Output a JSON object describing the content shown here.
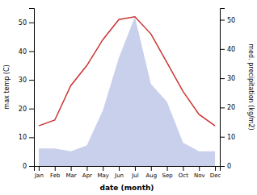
{
  "chart_data": {
    "type": "line",
    "xlabel": "date (month)",
    "ylabel": "max temp (C)",
    "y2label": "med. precipitation (kg/m2)",
    "categories": [
      "Jan",
      "Feb",
      "Mar",
      "Apr",
      "May",
      "Jun",
      "Jul",
      "Aug",
      "Sep",
      "Oct",
      "Nov",
      "Dec"
    ],
    "series": [
      {
        "type": "line",
        "color": "#cc3333",
        "values": [
          14,
          16,
          28,
          35,
          44,
          51,
          52,
          46,
          36,
          26,
          18,
          14
        ]
      },
      {
        "type": "area",
        "axis": "y2",
        "color": "#c8d0ec",
        "values": [
          6,
          6,
          5,
          7,
          19,
          37,
          51,
          28,
          22,
          8,
          5,
          5
        ]
      }
    ],
    "ylim": [
      0,
      55
    ],
    "yticks": [
      0,
      10,
      20,
      30,
      40,
      50
    ],
    "y2lim": [
      0,
      54
    ],
    "y2ticks": [
      0,
      10,
      20,
      30,
      40,
      50
    ]
  }
}
